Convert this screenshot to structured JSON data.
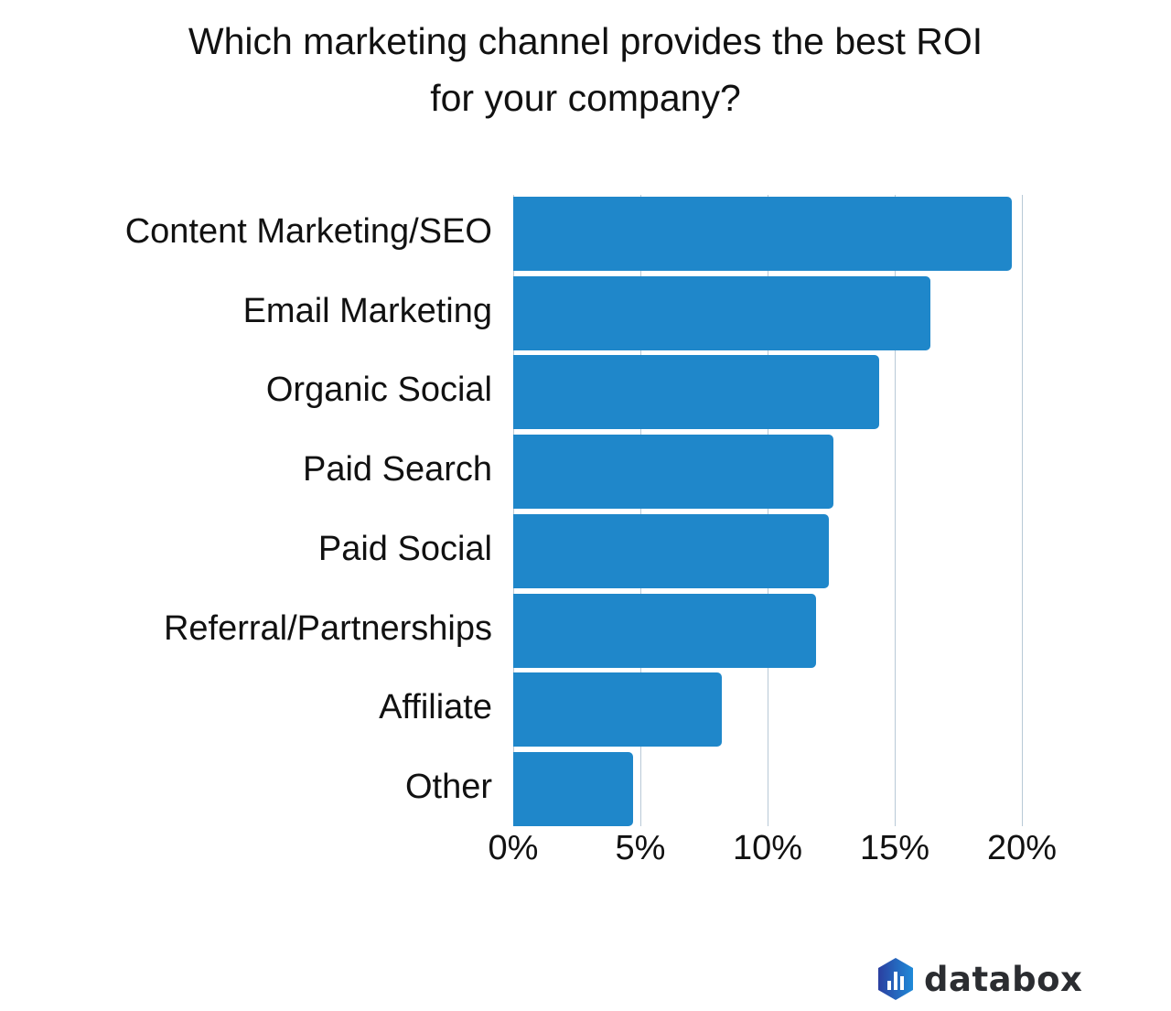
{
  "chart_data": {
    "type": "bar",
    "orientation": "horizontal",
    "title": "Which marketing channel provides the best ROI for your company?",
    "title_lines": [
      "Which marketing channel provides the best ROI",
      "for your company?"
    ],
    "categories": [
      "Content Marketing/SEO",
      "Email Marketing",
      "Organic Social",
      "Paid Search",
      "Paid Social",
      "Referral/Partnerships",
      "Affiliate",
      "Other"
    ],
    "values": [
      19.6,
      16.4,
      14.4,
      12.6,
      12.4,
      11.9,
      8.2,
      4.7
    ],
    "xlabel": "",
    "ylabel": "",
    "xlim": [
      0,
      20
    ],
    "x_ticks": [
      "0%",
      "5%",
      "10%",
      "15%",
      "20%"
    ],
    "grid": true,
    "bar_color": "#1f87ca",
    "legend": null
  },
  "branding": {
    "logo_text": "databox",
    "logo_icon": "databox-hexagon-bar-icon"
  }
}
